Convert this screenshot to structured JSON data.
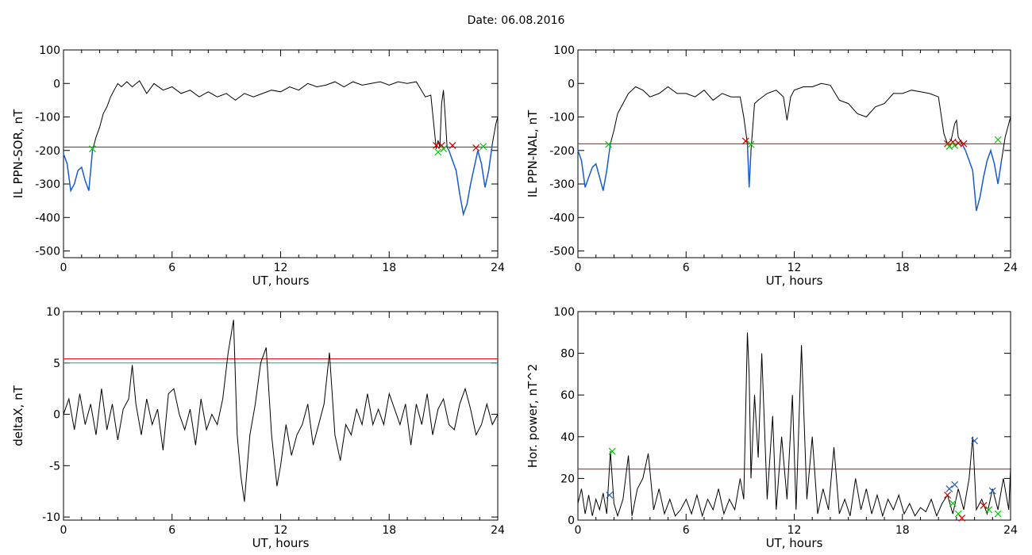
{
  "figure": {
    "title": "Date:  06.08.2016"
  },
  "chart_data": [
    {
      "id": "p1",
      "type": "line",
      "ylabel": "IL PPN-SOR, nT",
      "xlabel": "UT, hours",
      "xlim": [
        0,
        24
      ],
      "ylim": [
        -520,
        100
      ],
      "xticks": [
        0,
        6,
        12,
        18,
        24
      ],
      "yticks": [
        100,
        0,
        -100,
        -200,
        -300,
        -400,
        -500
      ],
      "series": [
        {
          "color": "#000000",
          "x": [
            0,
            0.2,
            0.4,
            0.6,
            0.8,
            1.0,
            1.2,
            1.4,
            1.6,
            1.8,
            2.0,
            2.2,
            2.4,
            2.6,
            2.8,
            3.0,
            3.2,
            3.5,
            3.8,
            4.2,
            4.6,
            5.0,
            5.5,
            6.0,
            6.5,
            7.0,
            7.5,
            8.0,
            8.5,
            9.0,
            9.5,
            10.0,
            10.5,
            11.0,
            11.5,
            12.0,
            12.5,
            13.0,
            13.5,
            14.0,
            14.5,
            15.0,
            15.5,
            16.0,
            16.5,
            17.0,
            17.5,
            18.0,
            18.5,
            19.0,
            19.5,
            20.0,
            20.3,
            20.5,
            20.6,
            20.7,
            20.8,
            20.9,
            21.0,
            21.1,
            21.2,
            21.3,
            21.5,
            21.7,
            21.9,
            22.1,
            22.3,
            22.5,
            22.7,
            22.9,
            23.1,
            23.3,
            23.5,
            23.7,
            23.9,
            24.0
          ],
          "y": [
            -210,
            -240,
            -320,
            -300,
            -260,
            -250,
            -290,
            -320,
            -200,
            -160,
            -130,
            -90,
            -70,
            -40,
            -20,
            0,
            -10,
            5,
            -10,
            8,
            -30,
            0,
            -20,
            -10,
            -30,
            -20,
            -40,
            -25,
            -40,
            -30,
            -50,
            -30,
            -40,
            -30,
            -20,
            -25,
            -10,
            -20,
            0,
            -10,
            -5,
            5,
            -10,
            5,
            -5,
            0,
            5,
            -5,
            5,
            0,
            5,
            -40,
            -35,
            -140,
            -195,
            -170,
            -190,
            -60,
            -20,
            -100,
            -190,
            -200,
            -230,
            -260,
            -330,
            -390,
            -360,
            -300,
            -250,
            -200,
            -240,
            -310,
            -260,
            -180,
            -120,
            -100
          ]
        }
      ],
      "blue_segments": [
        {
          "x": [
            0,
            0.2,
            0.4,
            0.6,
            0.8,
            1.0,
            1.2,
            1.4,
            1.6
          ],
          "y": [
            -210,
            -240,
            -320,
            -300,
            -260,
            -250,
            -290,
            -320,
            -200
          ]
        },
        {
          "x": [
            21.2,
            21.3,
            21.5,
            21.7,
            21.9,
            22.1,
            22.3,
            22.5,
            22.7,
            22.9,
            23.1,
            23.3,
            23.5,
            23.7
          ],
          "y": [
            -190,
            -200,
            -230,
            -260,
            -330,
            -390,
            -360,
            -300,
            -250,
            -200,
            -240,
            -310,
            -260,
            -180
          ]
        }
      ],
      "hlines": [
        {
          "y": -190,
          "color": "#e00000"
        }
      ],
      "markers": [
        {
          "x": 1.6,
          "y": -195,
          "color": "#00cc00"
        },
        {
          "x": 20.6,
          "y": -185,
          "color": "#d00000"
        },
        {
          "x": 20.7,
          "y": -205,
          "color": "#00cc00"
        },
        {
          "x": 20.9,
          "y": -185,
          "color": "#d00000"
        },
        {
          "x": 21.0,
          "y": -195,
          "color": "#00cc00"
        },
        {
          "x": 21.5,
          "y": -185,
          "color": "#d00000"
        },
        {
          "x": 22.8,
          "y": -192,
          "color": "#d00000"
        },
        {
          "x": 23.2,
          "y": -188,
          "color": "#00cc00"
        }
      ]
    },
    {
      "id": "p2",
      "type": "line",
      "ylabel": "IL PPN-NAL, nT",
      "xlabel": "UT, hours",
      "xlim": [
        0,
        24
      ],
      "ylim": [
        -520,
        100
      ],
      "xticks": [
        0,
        6,
        12,
        18,
        24
      ],
      "yticks": [
        100,
        0,
        -100,
        -200,
        -300,
        -400,
        -500
      ],
      "series": [
        {
          "color": "#000000",
          "x": [
            0,
            0.2,
            0.4,
            0.6,
            0.8,
            1.0,
            1.2,
            1.4,
            1.6,
            1.8,
            2.0,
            2.2,
            2.5,
            2.8,
            3.2,
            3.6,
            4.0,
            4.5,
            5.0,
            5.5,
            6.0,
            6.5,
            7.0,
            7.5,
            8.0,
            8.5,
            9.0,
            9.2,
            9.4,
            9.5,
            9.6,
            9.8,
            10.0,
            10.5,
            11.0,
            11.4,
            11.6,
            11.8,
            12.0,
            12.5,
            13.0,
            13.5,
            14.0,
            14.5,
            15.0,
            15.5,
            16.0,
            16.5,
            17.0,
            17.5,
            18.0,
            18.5,
            19.0,
            19.5,
            20.0,
            20.3,
            20.5,
            20.7,
            20.9,
            21.0,
            21.1,
            21.3,
            21.5,
            21.7,
            21.9,
            22.1,
            22.3,
            22.5,
            22.7,
            22.9,
            23.1,
            23.3,
            23.5,
            23.7,
            23.9,
            24.0
          ],
          "y": [
            -200,
            -230,
            -310,
            -280,
            -250,
            -240,
            -280,
            -320,
            -260,
            -180,
            -140,
            -90,
            -60,
            -30,
            -10,
            -20,
            -40,
            -30,
            -10,
            -30,
            -30,
            -40,
            -20,
            -50,
            -30,
            -40,
            -40,
            -100,
            -180,
            -310,
            -200,
            -60,
            -50,
            -30,
            -20,
            -40,
            -110,
            -40,
            -20,
            -10,
            -10,
            0,
            -5,
            -50,
            -60,
            -90,
            -100,
            -70,
            -60,
            -30,
            -30,
            -20,
            -25,
            -30,
            -40,
            -150,
            -180,
            -170,
            -120,
            -110,
            -160,
            -180,
            -200,
            -230,
            -260,
            -380,
            -340,
            -280,
            -230,
            -200,
            -240,
            -300,
            -230,
            -160,
            -120,
            -100
          ]
        }
      ],
      "blue_segments": [
        {
          "x": [
            0,
            0.2,
            0.4,
            0.6,
            0.8,
            1.0,
            1.2,
            1.4,
            1.6,
            1.8
          ],
          "y": [
            -200,
            -230,
            -310,
            -280,
            -250,
            -240,
            -280,
            -320,
            -260,
            -180
          ]
        },
        {
          "x": [
            9.4,
            9.5,
            9.6
          ],
          "y": [
            -180,
            -310,
            -200
          ]
        },
        {
          "x": [
            21.3,
            21.5,
            21.7,
            21.9,
            22.1,
            22.3,
            22.5,
            22.7,
            22.9,
            23.1,
            23.3,
            23.5
          ],
          "y": [
            -180,
            -200,
            -230,
            -260,
            -380,
            -340,
            -280,
            -230,
            -200,
            -240,
            -300,
            -230
          ]
        }
      ],
      "hlines": [
        {
          "y": -180,
          "color": "#e00000"
        }
      ],
      "markers": [
        {
          "x": 1.7,
          "y": -182,
          "color": "#00cc00"
        },
        {
          "x": 9.3,
          "y": -172,
          "color": "#d00000"
        },
        {
          "x": 9.6,
          "y": -182,
          "color": "#00cc00"
        },
        {
          "x": 20.5,
          "y": -180,
          "color": "#d00000"
        },
        {
          "x": 20.6,
          "y": -188,
          "color": "#00cc00"
        },
        {
          "x": 20.8,
          "y": -175,
          "color": "#d00000"
        },
        {
          "x": 20.9,
          "y": -185,
          "color": "#00cc00"
        },
        {
          "x": 21.1,
          "y": -178,
          "color": "#d00000"
        },
        {
          "x": 21.4,
          "y": -180,
          "color": "#d00000"
        },
        {
          "x": 23.3,
          "y": -168,
          "color": "#00cc00"
        }
      ]
    },
    {
      "id": "p3",
      "type": "line",
      "ylabel": "deltaX, nT",
      "xlabel": "UT, hours",
      "xlim": [
        0,
        24
      ],
      "ylim": [
        -10.3,
        10
      ],
      "xticks": [
        0,
        6,
        12,
        18,
        24
      ],
      "yticks": [
        10,
        5,
        0,
        -5,
        -10
      ],
      "series": [
        {
          "color": "#000000",
          "x": [
            0,
            0.3,
            0.6,
            0.9,
            1.2,
            1.5,
            1.8,
            2.1,
            2.4,
            2.7,
            3.0,
            3.3,
            3.6,
            3.8,
            4.0,
            4.3,
            4.6,
            4.9,
            5.2,
            5.5,
            5.8,
            6.1,
            6.4,
            6.7,
            7.0,
            7.3,
            7.6,
            7.9,
            8.2,
            8.5,
            8.8,
            9.1,
            9.4,
            9.6,
            9.8,
            10.0,
            10.3,
            10.6,
            10.9,
            11.2,
            11.5,
            11.8,
            12.0,
            12.3,
            12.6,
            12.9,
            13.2,
            13.5,
            13.8,
            14.1,
            14.4,
            14.7,
            15.0,
            15.3,
            15.6,
            15.9,
            16.2,
            16.5,
            16.8,
            17.1,
            17.4,
            17.7,
            18.0,
            18.3,
            18.6,
            18.9,
            19.2,
            19.5,
            19.8,
            20.1,
            20.4,
            20.7,
            21.0,
            21.3,
            21.6,
            21.9,
            22.2,
            22.5,
            22.8,
            23.1,
            23.4,
            23.7,
            24.0
          ],
          "y": [
            0,
            1.5,
            -1.5,
            2,
            -1,
            1,
            -2,
            2.5,
            -1.5,
            1,
            -2.5,
            0.5,
            1.5,
            4.8,
            1,
            -2,
            1.5,
            -1,
            0.5,
            -3.5,
            2,
            2.5,
            0,
            -1.5,
            0.5,
            -3,
            1.5,
            -1.5,
            0,
            -1,
            1.5,
            6,
            9.2,
            -2,
            -6,
            -8.5,
            -2,
            1,
            5,
            6.5,
            -2,
            -7,
            -5,
            -1,
            -4,
            -2,
            -1,
            1,
            -3,
            -1,
            1,
            6,
            -2,
            -4.5,
            -1,
            -2,
            0.5,
            -1,
            2,
            -1,
            0.5,
            -1,
            2,
            0.5,
            -1,
            1,
            -3,
            1,
            -1,
            2,
            -2,
            0.5,
            1.5,
            -1,
            -1.5,
            1,
            2.5,
            0.5,
            -2,
            -1,
            1,
            -1,
            0
          ]
        }
      ],
      "hlines": [
        {
          "y": 5.4,
          "color": "#e00000"
        },
        {
          "y": 5.0,
          "color": "#00aaaa"
        }
      ]
    },
    {
      "id": "p4",
      "type": "line",
      "ylabel": "Hor. power, nT^2",
      "xlabel": "UT, hours",
      "xlim": [
        0,
        24
      ],
      "ylim": [
        0,
        100
      ],
      "xticks": [
        0,
        6,
        12,
        18,
        24
      ],
      "yticks": [
        100,
        80,
        60,
        40,
        20,
        0
      ],
      "series": [
        {
          "color": "#000000",
          "x": [
            0,
            0.2,
            0.4,
            0.6,
            0.8,
            1.0,
            1.2,
            1.4,
            1.6,
            1.8,
            2.0,
            2.2,
            2.5,
            2.8,
            3.0,
            3.3,
            3.6,
            3.9,
            4.2,
            4.5,
            4.8,
            5.1,
            5.4,
            5.7,
            6.0,
            6.3,
            6.6,
            6.9,
            7.2,
            7.5,
            7.8,
            8.1,
            8.4,
            8.7,
            9.0,
            9.2,
            9.4,
            9.5,
            9.6,
            9.8,
            10.0,
            10.2,
            10.5,
            10.8,
            11.0,
            11.3,
            11.6,
            11.9,
            12.1,
            12.4,
            12.7,
            13.0,
            13.3,
            13.6,
            13.9,
            14.2,
            14.5,
            14.8,
            15.1,
            15.4,
            15.7,
            16.0,
            16.3,
            16.6,
            16.9,
            17.2,
            17.5,
            17.8,
            18.1,
            18.4,
            18.7,
            19.0,
            19.3,
            19.6,
            19.9,
            20.2,
            20.5,
            20.8,
            21.1,
            21.4,
            21.7,
            21.9,
            22.1,
            22.4,
            22.7,
            23.0,
            23.3,
            23.6,
            23.9,
            24.0
          ],
          "y": [
            8,
            15,
            3,
            12,
            2,
            10,
            5,
            13,
            3,
            33,
            8,
            2,
            10,
            31,
            2,
            15,
            20,
            32,
            5,
            15,
            3,
            10,
            2,
            5,
            10,
            3,
            12,
            2,
            10,
            5,
            15,
            3,
            10,
            5,
            20,
            10,
            90,
            70,
            20,
            60,
            30,
            80,
            10,
            50,
            5,
            40,
            10,
            60,
            5,
            84,
            10,
            40,
            3,
            15,
            5,
            35,
            3,
            10,
            2,
            20,
            5,
            15,
            3,
            12,
            2,
            10,
            5,
            12,
            3,
            8,
            2,
            6,
            4,
            10,
            2,
            8,
            12,
            3,
            15,
            5,
            20,
            40,
            5,
            10,
            3,
            15,
            5,
            20,
            5,
            25
          ]
        }
      ],
      "hlines": [
        {
          "y": 24.5,
          "color": "#e00000"
        }
      ],
      "markers": [
        {
          "x": 1.9,
          "y": 33,
          "color": "#00cc00"
        },
        {
          "x": 1.75,
          "y": 12,
          "color": "#2060c0"
        },
        {
          "x": 20.5,
          "y": 12,
          "color": "#d00000"
        },
        {
          "x": 20.6,
          "y": 15,
          "color": "#2060c0"
        },
        {
          "x": 20.8,
          "y": 8,
          "color": "#00cc00"
        },
        {
          "x": 20.9,
          "y": 17,
          "color": "#2060c0"
        },
        {
          "x": 21.1,
          "y": 3,
          "color": "#00cc00"
        },
        {
          "x": 21.3,
          "y": 1,
          "color": "#d00000"
        },
        {
          "x": 22.0,
          "y": 38,
          "color": "#2060c0"
        },
        {
          "x": 22.5,
          "y": 7,
          "color": "#d00000"
        },
        {
          "x": 22.8,
          "y": 5,
          "color": "#00cc00"
        },
        {
          "x": 23.0,
          "y": 14,
          "color": "#2060c0"
        },
        {
          "x": 23.3,
          "y": 3,
          "color": "#00cc00"
        }
      ]
    }
  ]
}
